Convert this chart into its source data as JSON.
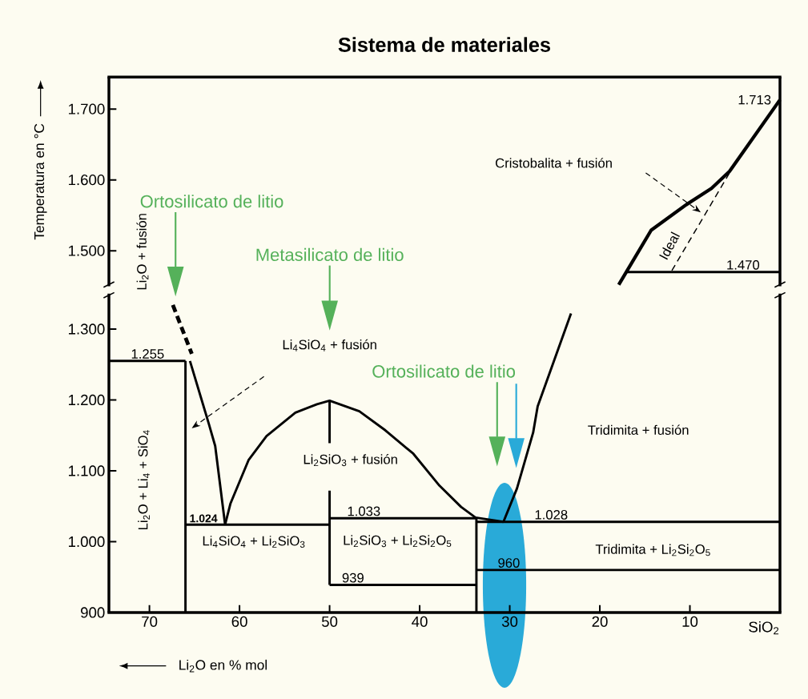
{
  "chart_data": [
    {
      "type": "line",
      "title": "Sistema de materiales",
      "ylabel": "Temperatura en °C",
      "color": "#000000",
      "xlim": [
        74.5,
        0
      ],
      "ylim": [
        1450,
        1745
      ],
      "yticks": [
        {
          "value": 1500,
          "label": "1.500"
        },
        {
          "value": 1600,
          "label": "1.600"
        },
        {
          "value": 1700,
          "label": "1.700"
        }
      ],
      "tick_labels": "y",
      "series": [
        {
          "x": [
            17,
            0
          ],
          "values": [
            1470,
            1470
          ]
        },
        {
          "x": [
            17.9,
            14.3,
            10.4,
            7.6,
            5.6,
            0
          ],
          "values": [
            1452,
            1529,
            1565,
            1588,
            1612,
            1713
          ]
        },
        {
          "x": [
            12,
            5.5
          ],
          "values": [
            1472,
            1612
          ],
          "line_style": "dashed"
        }
      ],
      "annotations": [
        "Li$_{2}$O + fusión",
        "Cristobalita + fusión",
        "Ideal",
        {
          "text": "1.470",
          "x": 4.1,
          "y": 1470
        },
        {
          "text": "1.713",
          "x": 0,
          "y": 1713
        }
      ]
    },
    {
      "type": "line",
      "xlabel": "Li$_{2}$O en % mol",
      "color": "#000000",
      "xlim": [
        74.5,
        0
      ],
      "ylim": [
        900,
        1350
      ],
      "xticks": [
        70,
        60,
        50,
        40,
        30,
        20,
        10
      ],
      "yticks": [
        900,
        {
          "value": 1000,
          "label": "1.000"
        },
        {
          "value": 1100,
          "label": "1.100"
        },
        {
          "value": 1200,
          "label": "1.200"
        },
        {
          "value": 1300,
          "label": "1.300"
        }
      ],
      "series": [
        {
          "x": [
            74.5,
            66
          ],
          "values": [
            1255,
            1255
          ]
        },
        {
          "x": [
            66,
            66
          ],
          "values": [
            900,
            1255
          ]
        },
        {
          "x": [
            65.5,
            63.4,
            62.7,
            61.6
          ],
          "values": [
            1255,
            1166,
            1135,
            1024
          ]
        },
        {
          "x": [
            67.4,
            65.3
          ],
          "values": [
            1334,
            1265
          ],
          "line_style": "dashed"
        },
        {
          "x": [
            66,
            50
          ],
          "values": [
            1024,
            1024
          ]
        },
        {
          "x": [
            61.6,
            61,
            59,
            57,
            53.8,
            51.4,
            50,
            46.7,
            43.8,
            40.7,
            37.8,
            35.4,
            33.8,
            30.7
          ],
          "values": [
            1024,
            1054,
            1115,
            1149,
            1182,
            1194,
            1199,
            1184,
            1157,
            1124,
            1079,
            1049,
            1034,
            1028
          ]
        },
        {
          "x": [
            50,
            50
          ],
          "values": [
            1199,
            1139
          ]
        },
        {
          "x": [
            50,
            50
          ],
          "values": [
            1072,
            939
          ]
        },
        {
          "x": [
            50,
            33.7
          ],
          "values": [
            1033,
            1033
          ]
        },
        {
          "x": [
            50,
            33.7
          ],
          "values": [
            939,
            939
          ]
        },
        {
          "x": [
            33.7,
            33.7
          ],
          "values": [
            900,
            1033
          ]
        },
        {
          "x": [
            33.7,
            0
          ],
          "values": [
            1028,
            1028
          ]
        },
        {
          "x": [
            33.7,
            0
          ],
          "values": [
            960,
            960
          ]
        },
        {
          "x": [
            30.7,
            29.2,
            27.4,
            26.9,
            23.2
          ],
          "values": [
            1028,
            1075,
            1154,
            1191,
            1322
          ]
        }
      ],
      "annotations": [
        "Ortosilicato de litio",
        "Metasilicato de litio",
        "Ortosilicato de litio",
        {
          "text": "1.255",
          "x": 70.2,
          "y": 1255
        },
        {
          "text": "1.024",
          "x": 64.0,
          "y": 1024
        },
        {
          "text": "1.033",
          "x": 46.2,
          "y": 1033
        },
        {
          "text": "939",
          "x": 47.4,
          "y": 939
        },
        {
          "text": "960",
          "x": 30.1,
          "y": 960
        },
        {
          "text": "1.028",
          "x": 25.4,
          "y": 1028
        },
        "Li$_{2}$O + Li$_{4}$ + SiO$_{4}$",
        "Li$_{4}$SiO$_{4}$ + fusión",
        "Li$_{2}$SiO$_{3}$ + fusión",
        "Li$_{4}$SiO$_{4}$ + Li$_{2}$SiO$_{3}$",
        "Li$_{2}$SiO$_{3}$ + Li$_{2}$Si$_{2}$O$_{5}$",
        "Tridimita + fusión",
        "Tridimita + Li$_{2}$Si$_{2}$O$_{5}$",
        "SiO$_{2}$"
      ]
    }
  ]
}
